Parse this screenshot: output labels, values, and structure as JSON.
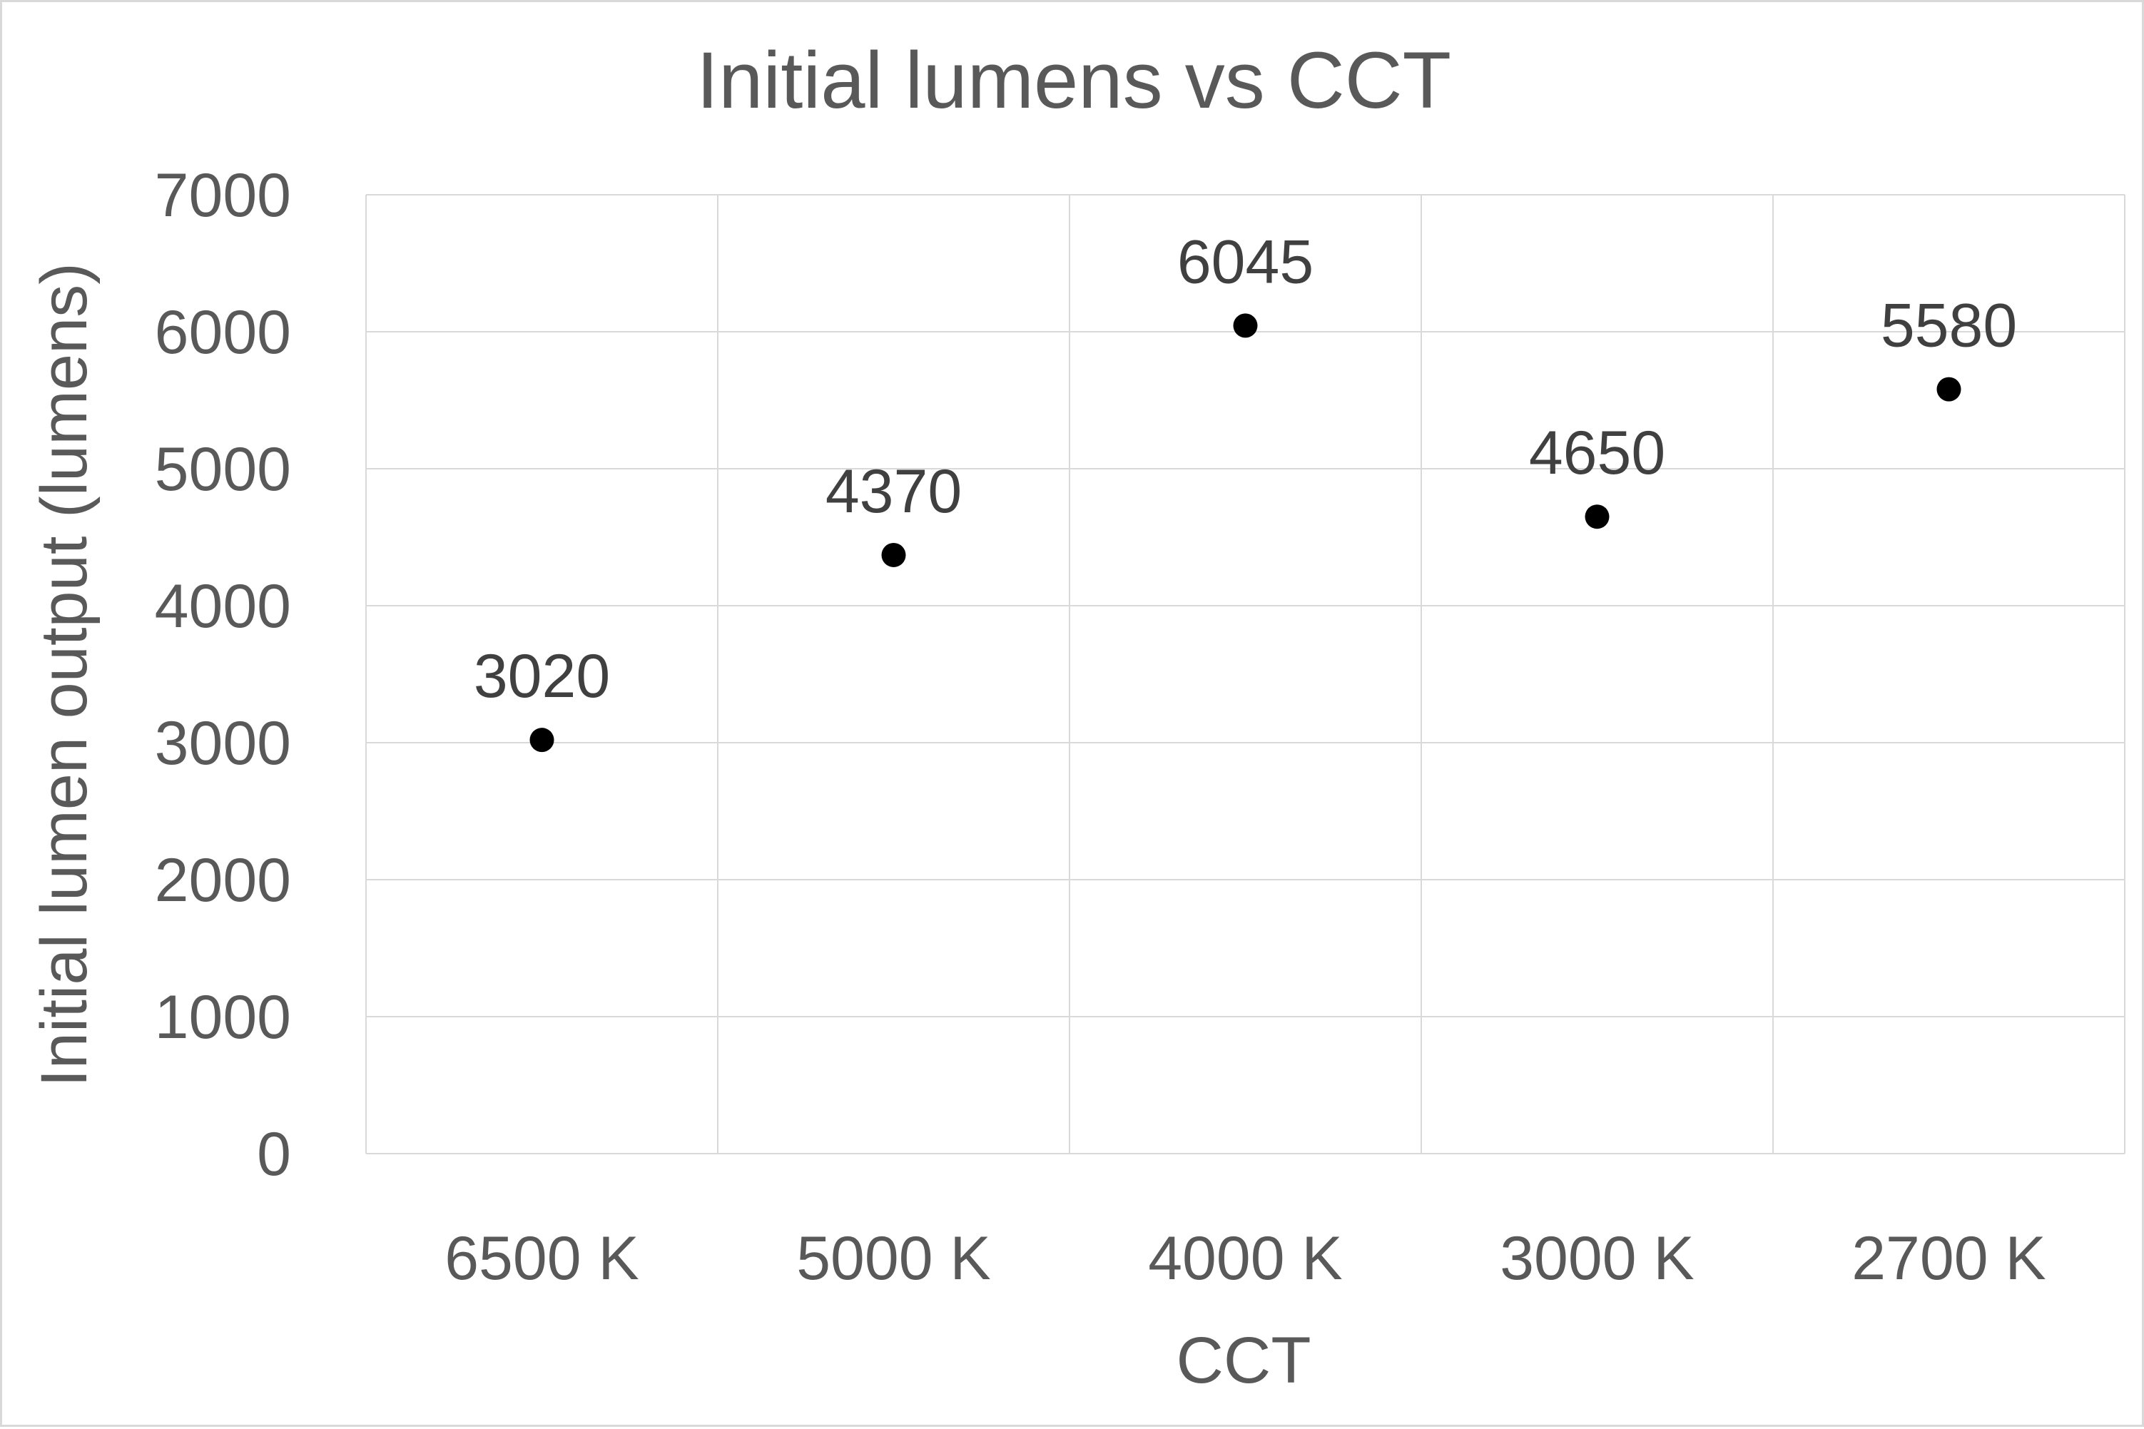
{
  "chart_data": {
    "type": "scatter",
    "title": "Initial lumens vs CCT",
    "xlabel": "CCT",
    "ylabel": "Initial lumen output (lumens)",
    "categories": [
      "6500 K",
      "5000 K",
      "4000 K",
      "3000 K",
      "2700 K"
    ],
    "series": [
      {
        "values": [
          3020,
          4370,
          6045,
          4650,
          5580
        ],
        "data_labels": [
          "3020",
          "4370",
          "6045",
          "4650",
          "5580"
        ],
        "color": "#000000"
      }
    ],
    "ylim": [
      0,
      7000
    ],
    "y_ticks": [
      "0",
      "1000",
      "2000",
      "3000",
      "4000",
      "5000",
      "6000",
      "7000"
    ],
    "grid": true,
    "legend": "none"
  }
}
